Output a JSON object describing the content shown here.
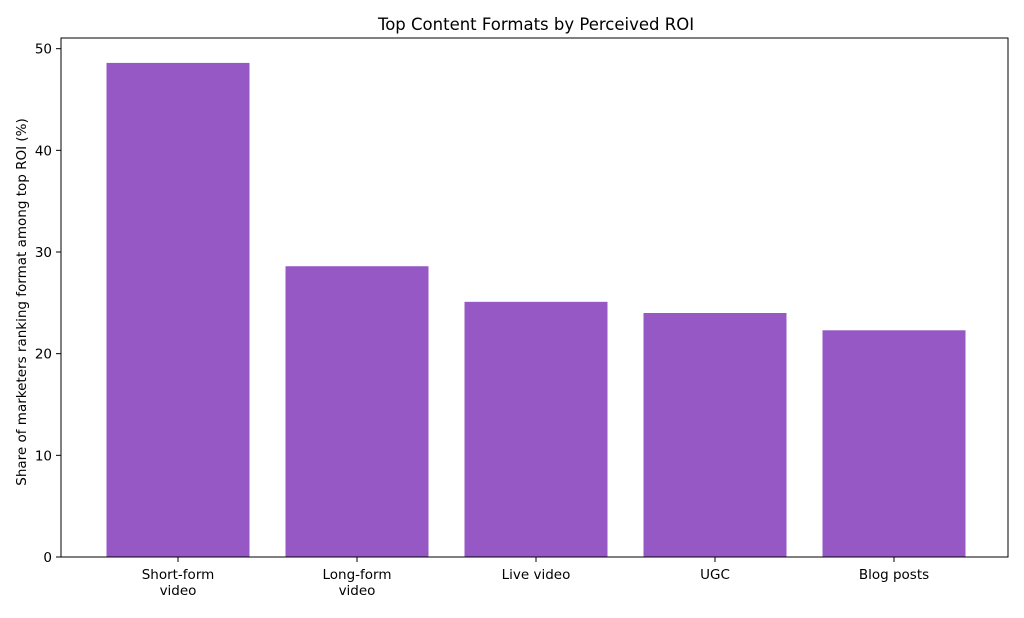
{
  "chart_data": {
    "type": "bar",
    "title": "Top Content Formats by Perceived ROI",
    "xlabel": "",
    "ylabel": "Share of marketers ranking format among top ROI (%)",
    "categories": [
      [
        "Short-form",
        "video"
      ],
      [
        "Long-form",
        "video"
      ],
      [
        "Live video"
      ],
      [
        "UGC"
      ],
      [
        "Blog posts"
      ]
    ],
    "values": [
      48.6,
      28.6,
      25.1,
      24.0,
      22.3
    ],
    "ylim": [
      0,
      51.05
    ],
    "yticks": [
      0,
      10,
      20,
      30,
      40,
      50
    ],
    "grid": false,
    "bar_color": "#9558C5"
  }
}
